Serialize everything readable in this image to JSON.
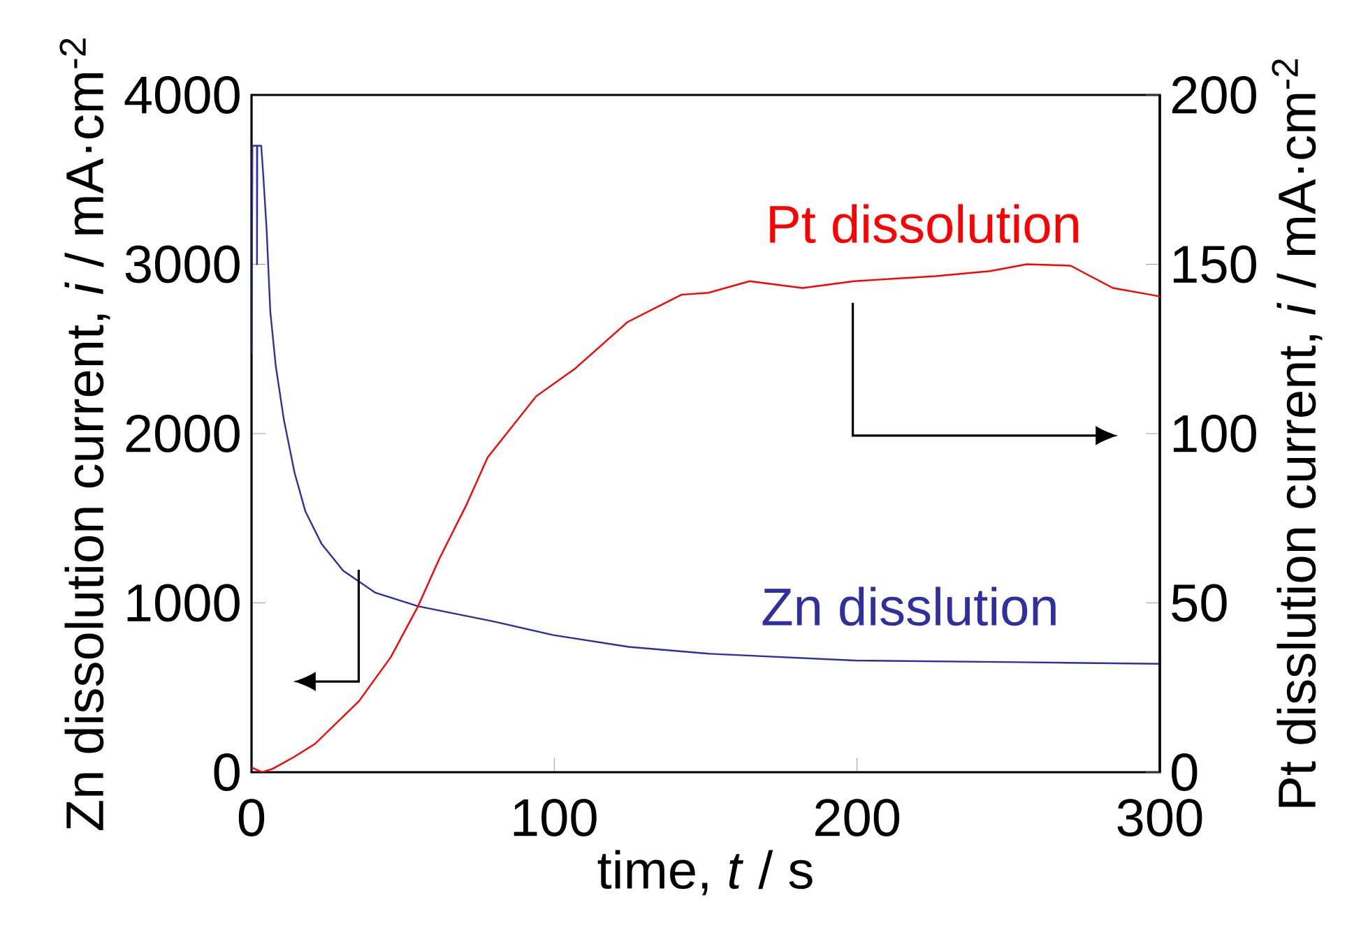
{
  "chart_data": {
    "type": "line",
    "xlabel": "time, *t* / s",
    "ylabel": "Zn dissolution current, *i* / mA·cm$^{-2}$",
    "y2label": "Pt disslution current, *i* / mA·cm$^{-2}$",
    "xlim": [
      0,
      300
    ],
    "xticks": [
      0,
      100,
      200,
      300
    ],
    "ylim": [
      0,
      4000
    ],
    "yticks": [
      0,
      1000,
      2000,
      3000,
      4000
    ],
    "y2lim": [
      0,
      200
    ],
    "y2ticks": [
      0,
      50,
      100,
      150,
      200
    ],
    "series": [
      {
        "name": "Pt dissolution",
        "color": "#ff0000",
        "axis": "y2",
        "x": [
          0,
          3.5,
          7,
          14,
          21,
          35.5,
          46,
          55,
          62,
          71,
          78,
          94,
          106.6,
          124.3,
          142,
          151,
          164.5,
          182,
          199,
          226,
          244,
          256,
          270.5,
          284.5,
          297,
          300
        ],
        "values": [
          1.4,
          0,
          1,
          4.5,
          8.4,
          21,
          34,
          49,
          63,
          79,
          93,
          111,
          119,
          133,
          141,
          141.6,
          145,
          143,
          145,
          146.5,
          148,
          150,
          149.6,
          143,
          141,
          140.5
        ]
      },
      {
        "name": "Zn disslution",
        "color": "#2f2f9f",
        "axis": "y",
        "x": [
          0,
          0.3,
          1.8,
          1.8,
          1.9,
          3.2,
          3.9,
          5,
          6.2,
          8,
          10.7,
          14.2,
          17.8,
          23.1,
          30.3,
          40.9,
          55.1,
          80,
          99.7,
          124.6,
          151,
          199.3,
          252.5,
          300
        ],
        "values": [
          2470,
          3700,
          3700,
          3000,
          3700,
          3700,
          3520,
          3200,
          2720,
          2400,
          2080,
          1770,
          1540,
          1350,
          1190,
          1060,
          980,
          890,
          810,
          740,
          700,
          660,
          650,
          640
        ]
      }
    ]
  }
}
